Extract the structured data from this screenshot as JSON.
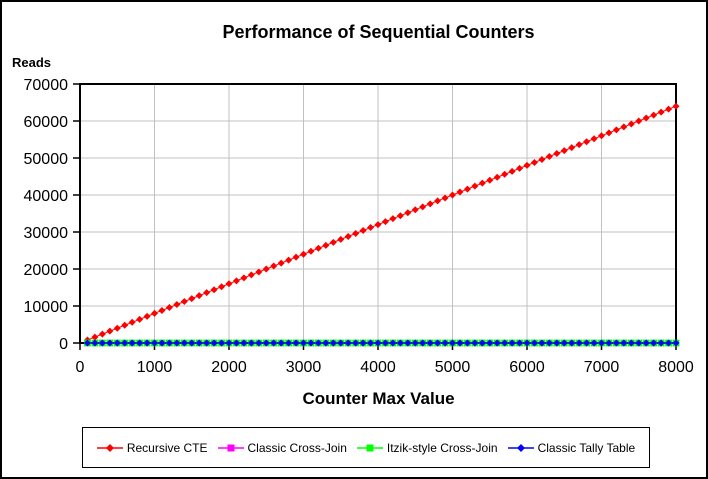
{
  "title": "Performance of Sequential Counters",
  "y_axis_label": "Reads",
  "x_axis_label": "Counter Max Value",
  "chart_data": {
    "type": "line",
    "title": "Performance of Sequential Counters",
    "xlabel": "Counter Max Value",
    "ylabel": "Reads",
    "xlim": [
      0,
      8000
    ],
    "ylim": [
      0,
      70000
    ],
    "x_ticks": [
      0,
      1000,
      2000,
      3000,
      4000,
      5000,
      6000,
      7000,
      8000
    ],
    "y_ticks": [
      0,
      10000,
      20000,
      30000,
      40000,
      50000,
      60000,
      70000
    ],
    "grid": true,
    "legend_position": "bottom",
    "colors": {
      "grid": "#C0C0C0",
      "axis": "#000000",
      "background": "#FFFFFF"
    },
    "x": [
      100,
      200,
      300,
      400,
      500,
      600,
      700,
      800,
      900,
      1000,
      1100,
      1200,
      1300,
      1400,
      1500,
      1600,
      1700,
      1800,
      1900,
      2000,
      2100,
      2200,
      2300,
      2400,
      2500,
      2600,
      2700,
      2800,
      2900,
      3000,
      3100,
      3200,
      3300,
      3400,
      3500,
      3600,
      3700,
      3800,
      3900,
      4000,
      4100,
      4200,
      4300,
      4400,
      4500,
      4600,
      4700,
      4800,
      4900,
      5000,
      5100,
      5200,
      5300,
      5400,
      5500,
      5600,
      5700,
      5800,
      5900,
      6000,
      6100,
      6200,
      6300,
      6400,
      6500,
      6600,
      6700,
      6800,
      6900,
      7000,
      7100,
      7200,
      7300,
      7400,
      7500,
      7600,
      7700,
      7800,
      7900,
      8000
    ],
    "series": [
      {
        "name": "Recursive CTE",
        "color": "#FF0000",
        "marker": "diamond",
        "values": [
          800,
          1600,
          2400,
          3200,
          4000,
          4800,
          5600,
          6400,
          7200,
          8000,
          8800,
          9600,
          10400,
          11200,
          12000,
          12800,
          13600,
          14400,
          15200,
          16000,
          16800,
          17600,
          18400,
          19200,
          20000,
          20800,
          21600,
          22400,
          23200,
          24000,
          24800,
          25600,
          26400,
          27200,
          28000,
          28800,
          29600,
          30400,
          31200,
          32000,
          32800,
          33600,
          34400,
          35200,
          36000,
          36800,
          37600,
          38400,
          39200,
          40000,
          40800,
          41600,
          42400,
          43200,
          44000,
          44800,
          45600,
          46400,
          47200,
          48000,
          48800,
          49600,
          50400,
          51200,
          52000,
          52800,
          53600,
          54400,
          55200,
          56000,
          56800,
          57600,
          58400,
          59200,
          60000,
          60800,
          61600,
          62400,
          63200,
          64000
        ]
      },
      {
        "name": "Classic Cross-Join",
        "color": "#FF00FF",
        "marker": "square",
        "values": [
          0,
          0,
          0,
          0,
          0,
          0,
          0,
          0,
          0,
          0,
          0,
          0,
          0,
          0,
          0,
          0,
          0,
          0,
          0,
          0,
          0,
          0,
          0,
          0,
          0,
          0,
          0,
          0,
          0,
          0,
          0,
          0,
          0,
          0,
          0,
          0,
          0,
          0,
          0,
          0,
          0,
          0,
          0,
          0,
          0,
          0,
          0,
          0,
          0,
          0,
          0,
          0,
          0,
          0,
          0,
          0,
          0,
          0,
          0,
          0,
          0,
          0,
          0,
          0,
          0,
          0,
          0,
          0,
          0,
          0,
          0,
          0,
          0,
          0,
          0,
          0,
          0,
          0,
          0,
          0
        ]
      },
      {
        "name": "Itzik-style Cross-Join",
        "color": "#00FF00",
        "marker": "square",
        "values": [
          0,
          0,
          0,
          0,
          0,
          0,
          0,
          0,
          0,
          0,
          0,
          0,
          0,
          0,
          0,
          0,
          0,
          0,
          0,
          0,
          0,
          0,
          0,
          0,
          0,
          0,
          0,
          0,
          0,
          0,
          0,
          0,
          0,
          0,
          0,
          0,
          0,
          0,
          0,
          0,
          0,
          0,
          0,
          0,
          0,
          0,
          0,
          0,
          0,
          0,
          0,
          0,
          0,
          0,
          0,
          0,
          0,
          0,
          0,
          0,
          0,
          0,
          0,
          0,
          0,
          0,
          0,
          0,
          0,
          0,
          0,
          0,
          0,
          0,
          0,
          0,
          0,
          0,
          0,
          0
        ]
      },
      {
        "name": "Classic Tally Table",
        "color": "#0000FF",
        "marker": "diamond",
        "values": [
          0,
          0,
          0,
          0,
          0,
          0,
          0,
          0,
          0,
          0,
          0,
          0,
          0,
          0,
          0,
          0,
          0,
          0,
          0,
          0,
          0,
          0,
          0,
          0,
          0,
          0,
          0,
          0,
          0,
          0,
          0,
          0,
          0,
          0,
          0,
          0,
          0,
          0,
          0,
          0,
          0,
          0,
          0,
          0,
          0,
          0,
          0,
          0,
          0,
          0,
          0,
          0,
          0,
          0,
          0,
          0,
          0,
          0,
          0,
          0,
          0,
          0,
          0,
          0,
          0,
          0,
          0,
          0,
          0,
          0,
          0,
          0,
          0,
          0,
          0,
          0,
          0,
          0,
          0,
          0
        ]
      }
    ]
  }
}
